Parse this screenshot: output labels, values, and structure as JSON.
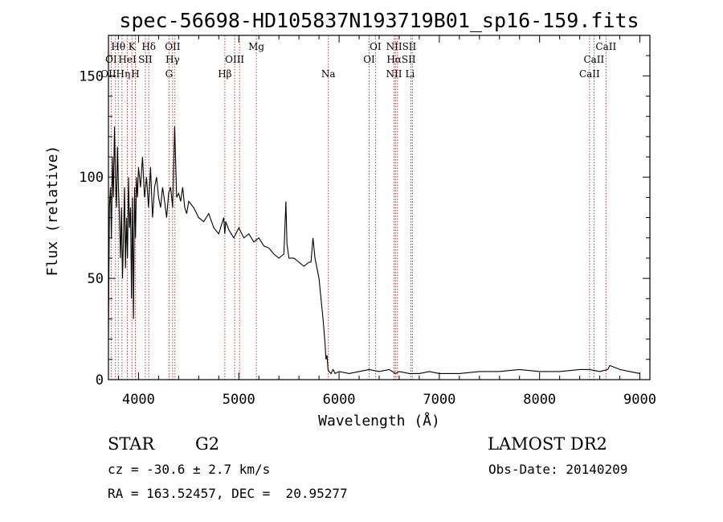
{
  "title": "spec-56698-HD105837N193719B01_sp16-159.fits",
  "xlabel": "Wavelength (Å)",
  "ylabel": "Flux (relative)",
  "info": {
    "object_class": "STAR",
    "subclass": "G2",
    "survey": "LAMOST DR2",
    "redshift": "cz = -30.6 ± 2.7 km/s",
    "obs_date": "Obs-Date: 20140209",
    "coords": "RA = 163.52457, DEC =  20.95277"
  },
  "chart_data": {
    "type": "line",
    "xlim": [
      3700,
      9100
    ],
    "ylim": [
      0,
      170
    ],
    "xticks": [
      4000,
      5000,
      6000,
      7000,
      8000,
      9000
    ],
    "yticks": [
      0,
      50,
      100,
      150
    ],
    "series": [
      {
        "x": [
          3700,
          3710,
          3720,
          3730,
          3740,
          3750,
          3760,
          3770,
          3780,
          3790,
          3800,
          3810,
          3820,
          3830,
          3840,
          3850,
          3860,
          3870,
          3880,
          3890,
          3900,
          3910,
          3920,
          3930,
          3940,
          3950,
          3960,
          3970,
          3980,
          3990,
          4000,
          4020,
          4040,
          4060,
          4080,
          4100,
          4120,
          4140,
          4160,
          4180,
          4200,
          4220,
          4240,
          4260,
          4280,
          4300,
          4320,
          4340,
          4360,
          4380,
          4400,
          4420,
          4440,
          4460,
          4480,
          4500,
          4550,
          4600,
          4650,
          4700,
          4750,
          4800,
          4850,
          4860,
          4870,
          4900,
          4950,
          5000,
          5050,
          5100,
          5150,
          5200,
          5250,
          5300,
          5350,
          5400,
          5450,
          5470,
          5480,
          5500,
          5550,
          5600,
          5650,
          5700,
          5720,
          5740,
          5760,
          5780,
          5800,
          5820,
          5840,
          5860,
          5870,
          5880,
          5890,
          5900,
          5920,
          5940,
          5960,
          6000,
          6100,
          6200,
          6300,
          6400,
          6500,
          6563,
          6600,
          6700,
          6800,
          6900,
          7000,
          7200,
          7400,
          7600,
          7800,
          8000,
          8200,
          8400,
          8500,
          8600,
          8680,
          8700,
          8800,
          8900,
          9000
        ],
        "y": [
          20,
          85,
          95,
          70,
          110,
          90,
          125,
          100,
          85,
          115,
          95,
          80,
          60,
          85,
          50,
          70,
          95,
          55,
          80,
          60,
          100,
          75,
          85,
          40,
          90,
          30,
          95,
          70,
          100,
          90,
          105,
          95,
          110,
          90,
          100,
          85,
          105,
          80,
          95,
          100,
          90,
          85,
          95,
          88,
          80,
          92,
          95,
          85,
          125,
          90,
          92,
          88,
          95,
          85,
          82,
          88,
          85,
          80,
          78,
          82,
          75,
          72,
          80,
          72,
          78,
          74,
          70,
          75,
          70,
          72,
          68,
          70,
          66,
          65,
          62,
          60,
          62,
          88,
          67,
          60,
          60,
          58,
          56,
          58,
          58,
          70,
          60,
          55,
          50,
          40,
          30,
          18,
          10,
          12,
          5,
          4,
          3,
          5,
          3,
          4,
          3,
          4,
          5,
          4,
          5,
          3,
          4,
          3,
          3,
          4,
          3,
          3,
          4,
          4,
          5,
          4,
          4,
          5,
          5,
          4,
          5,
          7,
          5,
          4,
          3
        ]
      }
    ],
    "lines": [
      {
        "name": "Hθ",
        "x": 3798,
        "row": 0
      },
      {
        "name": "K",
        "x": 3934,
        "row": 0
      },
      {
        "name": "Hδ",
        "x": 4102,
        "row": 0
      },
      {
        "name": "OII",
        "x": 4340,
        "row": 0
      },
      {
        "name": "Mg",
        "x": 5175,
        "row": 0
      },
      {
        "name": "OI",
        "x": 6363,
        "row": 0
      },
      {
        "name": "NIISII",
        "x": 6620,
        "row": 0
      },
      {
        "name": "CaII",
        "x": 8662,
        "row": 0
      },
      {
        "name": "OI",
        "x": 3727,
        "row": 1
      },
      {
        "name": "HeI",
        "x": 3889,
        "row": 1
      },
      {
        "name": "SII",
        "x": 4068,
        "row": 1
      },
      {
        "name": "Hγ",
        "x": 4340,
        "row": 1
      },
      {
        "name": "OIII",
        "x": 4959,
        "row": 1
      },
      {
        "name": "OI",
        "x": 6300,
        "row": 1
      },
      {
        "name": "HαSII",
        "x": 6620,
        "row": 1
      },
      {
        "name": "CaII",
        "x": 8542,
        "row": 1
      },
      {
        "name": "OIIHη",
        "x": 3770,
        "row": 2
      },
      {
        "name": "H",
        "x": 3968,
        "row": 2
      },
      {
        "name": "G",
        "x": 4304,
        "row": 2
      },
      {
        "name": "Hβ",
        "x": 4861,
        "row": 2
      },
      {
        "name": "Na",
        "x": 5893,
        "row": 2
      },
      {
        "name": "NII",
        "x": 6548,
        "row": 2
      },
      {
        "name": "Li",
        "x": 6708,
        "row": 2
      },
      {
        "name": "CaII",
        "x": 8498,
        "row": 2
      }
    ],
    "line_markers": [
      3727,
      3770,
      3798,
      3835,
      3889,
      3934,
      3968,
      4068,
      4102,
      4304,
      4340,
      4363,
      4861,
      4959,
      5007,
      5175,
      5893,
      6300,
      6363,
      6548,
      6563,
      6583,
      6716,
      6731,
      8498,
      8542,
      8662
    ],
    "grid": false,
    "legend": "none"
  }
}
